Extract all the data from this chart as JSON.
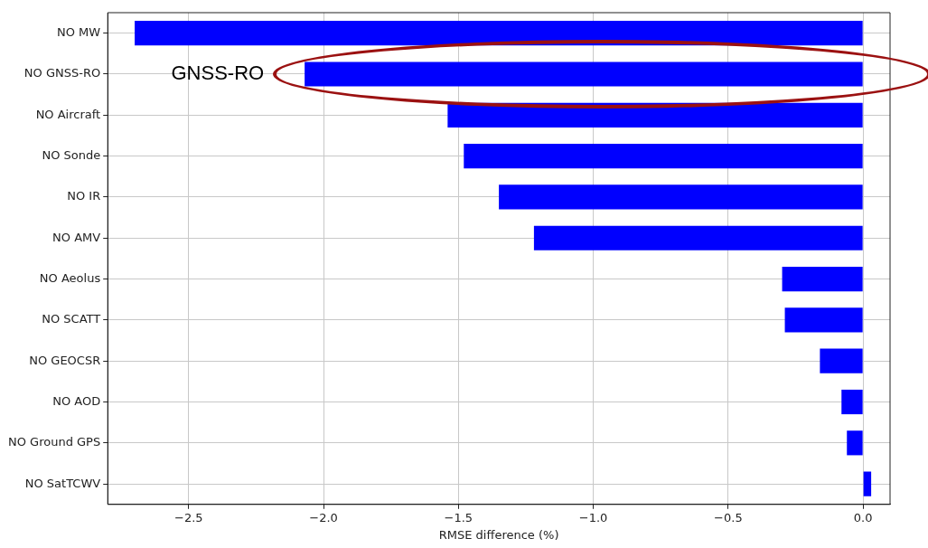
{
  "chart_data": {
    "type": "bar",
    "orientation": "horizontal",
    "xlabel": "RMSE difference (%)",
    "categories": [
      "NO MW",
      "NO GNSS-RO",
      "NO Aircraft",
      "NO Sonde",
      "NO IR",
      "NO AMV",
      "NO Aeolus",
      "NO SCATT",
      "NO GEOCSR",
      "NO AOD",
      "NO Ground GPS",
      "NO SatTCWV"
    ],
    "values": [
      -2.7,
      -2.07,
      -1.54,
      -1.48,
      -1.35,
      -1.22,
      -0.3,
      -0.29,
      -0.16,
      -0.08,
      -0.06,
      0.03
    ],
    "color": "#0000ff",
    "xlim": [
      -2.8,
      0.1
    ],
    "xticks": [
      {
        "value": -2.5,
        "label": "−2.5"
      },
      {
        "value": -2.0,
        "label": "−2.0"
      },
      {
        "value": -1.5,
        "label": "−1.5"
      },
      {
        "value": -1.0,
        "label": "−1.0"
      },
      {
        "value": -0.5,
        "label": "−0.5"
      },
      {
        "value": 0,
        "label": "0.0"
      }
    ],
    "grid": true,
    "annotations": [
      {
        "text": "GNSS-RO",
        "x": -2.07,
        "y": "NO GNSS-RO"
      }
    ]
  }
}
